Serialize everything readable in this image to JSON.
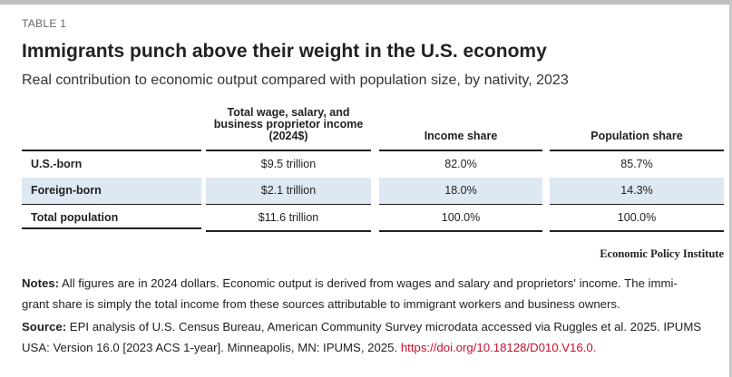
{
  "table_label": "TABLE 1",
  "title": "Immigrants punch above their weight in the U.S. economy",
  "subtitle": "Real contribution to economic output compared with population size, by nativity, 2023",
  "columns": {
    "col1_line1": "Total wage, salary, and",
    "col1_line2": "business proprietor income",
    "col1_line3": "(2024$)",
    "col2": "Income share",
    "col3": "Population share"
  },
  "rows": [
    {
      "name": "U.S.-born",
      "income": "$9.5 trillion",
      "income_share": "82.0%",
      "pop_share": "85.7%"
    },
    {
      "name": "Foreign-born",
      "income": "$2.1 trillion",
      "income_share": "18.0%",
      "pop_share": "14.3%"
    },
    {
      "name": "Total population",
      "income": "$11.6 trillion",
      "income_share": "100.0%",
      "pop_share": "100.0%"
    }
  ],
  "brand": "Economic Policy Institute",
  "notes": {
    "label": "Notes:",
    "line1": "All figures are in 2024 dollars. Economic output is derived from wages and salary and proprietors' income. The immi-",
    "line2": "grant share is simply the total income from these sources attributable to immigrant workers and business owners."
  },
  "source": {
    "label": "Source:",
    "line1": "EPI analysis of U.S. Census Bureau, American Community Survey microdata accessed via Ruggles et al. 2025. IPUMS",
    "line2": "USA: Version 16.0 [2023 ACS 1-year]. Minneapolis, MN: IPUMS, 2025.",
    "link": "https://doi.org/10.18128/D010.V16.0."
  }
}
